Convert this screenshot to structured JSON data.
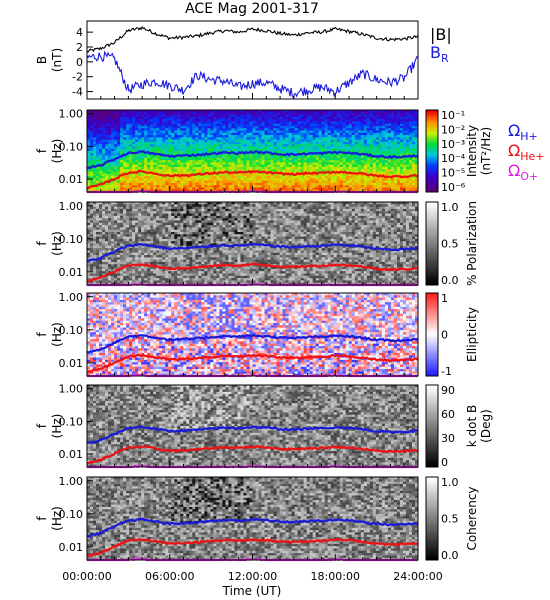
{
  "figure": {
    "title": "ACE Mag 2001-317",
    "xlabel": "Time (UT)",
    "xticks": [
      "00:00:00",
      "06:00:00",
      "12:00:00",
      "18:00:00",
      "24:00:00"
    ]
  },
  "chart_data": [
    {
      "type": "line",
      "ylabel": "B",
      "yunit": "(nT)",
      "ylim": [
        -5,
        5.5
      ],
      "yticks": [
        "4",
        "2",
        "0",
        "-2",
        "-4"
      ],
      "x_hours": [
        0,
        1,
        2,
        3,
        4,
        5,
        6,
        7,
        8,
        9,
        10,
        11,
        12,
        13,
        14,
        15,
        16,
        17,
        18,
        19,
        20,
        21,
        22,
        23,
        24
      ],
      "series": [
        {
          "name": "|B|",
          "color": "#000000",
          "values": [
            1.4,
            1.8,
            2.6,
            4.2,
            4.6,
            3.8,
            3.2,
            3.3,
            3.5,
            3.9,
            4.2,
            4.0,
            4.4,
            4.2,
            3.8,
            3.6,
            3.9,
            4.0,
            4.4,
            4.1,
            3.7,
            3.2,
            3.0,
            3.1,
            3.4
          ]
        },
        {
          "name": "B_R",
          "color": "#1a1adb",
          "values": [
            0.6,
            0.8,
            0.4,
            -3.8,
            -3.0,
            -2.6,
            -3.2,
            -3.8,
            -1.8,
            -2.4,
            -2.6,
            -3.4,
            -2.9,
            -2.8,
            -3.6,
            -4.2,
            -3.8,
            -3.4,
            -4.0,
            -2.8,
            -1.6,
            -2.4,
            -2.8,
            -2.2,
            0.4
          ]
        }
      ]
    },
    {
      "type": "heatmap",
      "ylabel": "f",
      "yunit": "(Hz)",
      "ylim": [
        0.004,
        1.3
      ],
      "yscale": "log",
      "yticks": [
        "1.00",
        "0.10",
        "0.01"
      ],
      "quantity": "Intensity",
      "colorbar_unit": "(nT²/Hz)",
      "colorbar_ticks": [
        "10⁻¹",
        "10⁻²",
        "10⁻³",
        "10⁻⁴",
        "10⁻⁵",
        "10⁻⁶"
      ],
      "colormap": "rainbow"
    },
    {
      "type": "heatmap",
      "ylabel": "f",
      "yunit": "(Hz)",
      "ylim": [
        0.004,
        1.3
      ],
      "yscale": "log",
      "yticks": [
        "1.00",
        "0.10",
        "0.01"
      ],
      "quantity": "% Polarization",
      "colorbar_unit": "",
      "colorbar_ticks": [
        "1.0",
        "0.5",
        "0.0"
      ],
      "colormap": "gray"
    },
    {
      "type": "heatmap",
      "ylabel": "f",
      "yunit": "(Hz)",
      "ylim": [
        0.004,
        1.3
      ],
      "yscale": "log",
      "yticks": [
        "1.00",
        "0.10",
        "0.01"
      ],
      "quantity": "Ellipticity",
      "colorbar_unit": "",
      "colorbar_ticks": [
        "1",
        "0",
        "-1"
      ],
      "colormap": "bluewhitered"
    },
    {
      "type": "heatmap",
      "ylabel": "f",
      "yunit": "(Hz)",
      "ylim": [
        0.004,
        1.3
      ],
      "yscale": "log",
      "yticks": [
        "1.00",
        "0.10",
        "0.01"
      ],
      "quantity": "k dot B",
      "colorbar_unit": "(Deg)",
      "colorbar_ticks": [
        "90",
        "60",
        "30",
        "0"
      ],
      "colormap": "gray"
    },
    {
      "type": "heatmap",
      "ylabel": "f",
      "yunit": "(Hz)",
      "ylim": [
        0.004,
        1.3
      ],
      "yscale": "log",
      "yticks": [
        "1.00",
        "0.10",
        "0.01"
      ],
      "quantity": "Coherency",
      "colorbar_unit": "",
      "colorbar_ticks": [
        "1.0",
        "0.5",
        "0.0"
      ],
      "colormap": "gray"
    }
  ],
  "gyrofrequencies": {
    "x_hours": [
      0,
      1,
      2,
      3,
      4,
      5,
      6,
      7,
      8,
      9,
      10,
      11,
      12,
      13,
      14,
      15,
      16,
      17,
      18,
      19,
      20,
      21,
      22,
      23,
      24
    ],
    "lines": [
      {
        "name": "Ω",
        "ion": "H+",
        "color": "#1a1adb",
        "values": [
          0.021,
          0.026,
          0.04,
          0.062,
          0.068,
          0.058,
          0.05,
          0.052,
          0.055,
          0.06,
          0.064,
          0.062,
          0.067,
          0.064,
          0.058,
          0.056,
          0.06,
          0.061,
          0.066,
          0.063,
          0.057,
          0.05,
          0.047,
          0.048,
          0.052
        ]
      },
      {
        "name": "Ω",
        "ion": "He+",
        "color": "#ee1111",
        "values": [
          0.0053,
          0.0066,
          0.01,
          0.0155,
          0.017,
          0.0145,
          0.0125,
          0.013,
          0.0137,
          0.015,
          0.016,
          0.0155,
          0.0168,
          0.016,
          0.0145,
          0.014,
          0.015,
          0.0152,
          0.0165,
          0.0158,
          0.0143,
          0.0125,
          0.0118,
          0.012,
          0.013
        ]
      },
      {
        "name": "Ω",
        "ion": "O+",
        "color": "#e020e0",
        "values": [
          0.0035,
          0.0035,
          0.0035,
          0.0039,
          0.0043,
          0.0036,
          0.0035,
          0.0035,
          0.0035,
          0.0037,
          0.004,
          0.0039,
          0.0042,
          0.004,
          0.0036,
          0.0035,
          0.0037,
          0.0038,
          0.0041,
          0.0039,
          0.0036,
          0.0035,
          0.0035,
          0.0035,
          0.0035
        ]
      }
    ]
  }
}
